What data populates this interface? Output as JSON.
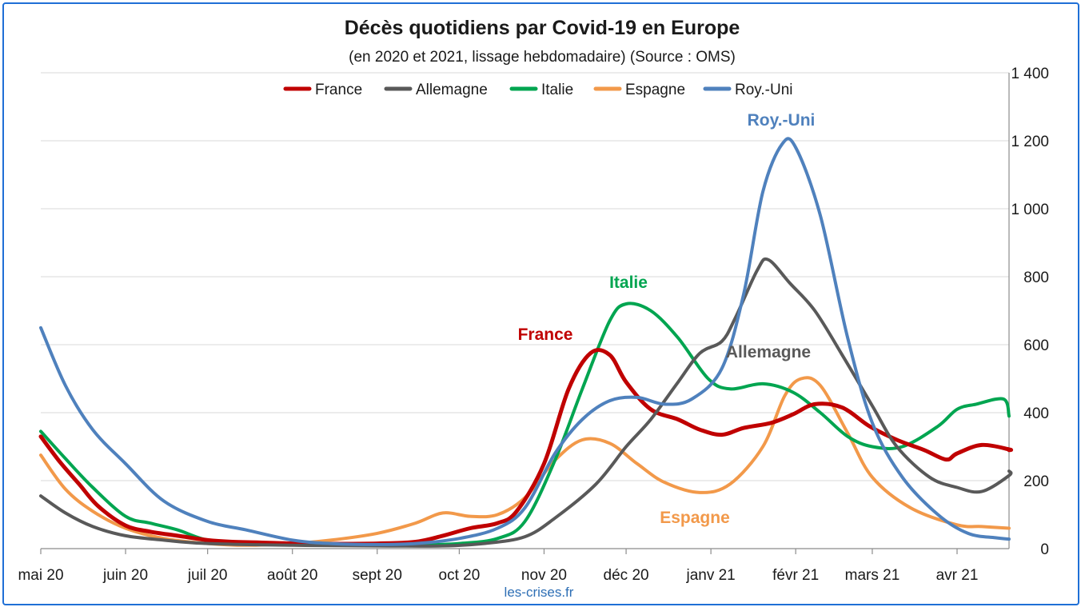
{
  "chart_data": {
    "type": "line",
    "title": "Décès quotidiens par Covid-19 en Europe",
    "subtitle": "(en 2020 et 2021, lissage hebdomadaire) (Source : OMS)",
    "source_label": "les-crises.fr",
    "x_axis": {
      "tick_labels": [
        "mai 20",
        "juin 20",
        "juil 20",
        "août 20",
        "sept 20",
        "oct 20",
        "nov 20",
        "déc 20",
        "janv 21",
        "févr 21",
        "mars 21",
        "avr 21"
      ],
      "range": [
        "2020-05-01",
        "2021-04-20"
      ]
    },
    "y_axis": {
      "position": "right",
      "range": [
        0,
        1400
      ],
      "ticks": [
        0,
        200,
        400,
        600,
        800,
        1000,
        1200,
        1400
      ],
      "tick_labels": [
        "0",
        "200",
        "400",
        "600",
        "800",
        "1 000",
        "1 200",
        "1 400"
      ],
      "grid": true
    },
    "legend": {
      "placement": "top"
    },
    "series": [
      {
        "name": "France",
        "color": "#c00000",
        "annotation": "France",
        "points": [
          [
            "2020-05-01",
            330
          ],
          [
            "2020-05-08",
            255
          ],
          [
            "2020-05-15",
            190
          ],
          [
            "2020-05-22",
            125
          ],
          [
            "2020-06-01",
            68
          ],
          [
            "2020-06-10",
            50
          ],
          [
            "2020-06-20",
            38
          ],
          [
            "2020-07-01",
            25
          ],
          [
            "2020-07-10",
            20
          ],
          [
            "2020-07-20",
            18
          ],
          [
            "2020-08-01",
            15
          ],
          [
            "2020-08-15",
            14
          ],
          [
            "2020-09-01",
            15
          ],
          [
            "2020-09-15",
            20
          ],
          [
            "2020-09-25",
            38
          ],
          [
            "2020-10-05",
            60
          ],
          [
            "2020-10-15",
            75
          ],
          [
            "2020-10-22",
            110
          ],
          [
            "2020-11-01",
            250
          ],
          [
            "2020-11-10",
            470
          ],
          [
            "2020-11-18",
            575
          ],
          [
            "2020-11-25",
            570
          ],
          [
            "2020-12-01",
            490
          ],
          [
            "2020-12-10",
            410
          ],
          [
            "2020-12-20",
            380
          ],
          [
            "2020-12-28",
            350
          ],
          [
            "2021-01-05",
            335
          ],
          [
            "2021-01-13",
            355
          ],
          [
            "2021-01-23",
            370
          ],
          [
            "2021-01-31",
            395
          ],
          [
            "2021-02-08",
            425
          ],
          [
            "2021-02-18",
            415
          ],
          [
            "2021-02-28",
            360
          ],
          [
            "2021-03-10",
            320
          ],
          [
            "2021-03-20",
            290
          ],
          [
            "2021-03-28",
            262
          ],
          [
            "2021-04-01",
            280
          ],
          [
            "2021-04-10",
            305
          ],
          [
            "2021-04-20",
            292
          ],
          [
            "2021-04-25",
            290
          ]
        ]
      },
      {
        "name": "Allemagne",
        "color": "#595959",
        "annotation": "Allemagne",
        "points": [
          [
            "2020-05-01",
            155
          ],
          [
            "2020-05-10",
            105
          ],
          [
            "2020-05-20",
            65
          ],
          [
            "2020-06-01",
            38
          ],
          [
            "2020-06-15",
            25
          ],
          [
            "2020-07-01",
            15
          ],
          [
            "2020-08-01",
            10
          ],
          [
            "2020-09-01",
            8
          ],
          [
            "2020-09-25",
            8
          ],
          [
            "2020-10-10",
            15
          ],
          [
            "2020-10-25",
            35
          ],
          [
            "2020-11-05",
            90
          ],
          [
            "2020-11-20",
            190
          ],
          [
            "2020-12-01",
            300
          ],
          [
            "2020-12-10",
            380
          ],
          [
            "2020-12-20",
            490
          ],
          [
            "2020-12-28",
            575
          ],
          [
            "2021-01-05",
            610
          ],
          [
            "2021-01-10",
            680
          ],
          [
            "2021-01-18",
            820
          ],
          [
            "2021-01-22",
            850
          ],
          [
            "2021-01-30",
            780
          ],
          [
            "2021-02-08",
            700
          ],
          [
            "2021-02-18",
            570
          ],
          [
            "2021-03-01",
            420
          ],
          [
            "2021-03-10",
            300
          ],
          [
            "2021-03-22",
            210
          ],
          [
            "2021-04-01",
            180
          ],
          [
            "2021-04-10",
            168
          ],
          [
            "2021-04-20",
            215
          ],
          [
            "2021-04-25",
            228
          ]
        ]
      },
      {
        "name": "Italie",
        "color": "#00a550",
        "annotation": "Italie",
        "points": [
          [
            "2020-05-01",
            345
          ],
          [
            "2020-05-10",
            265
          ],
          [
            "2020-05-20",
            180
          ],
          [
            "2020-06-01",
            95
          ],
          [
            "2020-06-10",
            75
          ],
          [
            "2020-06-20",
            55
          ],
          [
            "2020-07-01",
            25
          ],
          [
            "2020-07-15",
            17
          ],
          [
            "2020-08-01",
            12
          ],
          [
            "2020-08-15",
            10
          ],
          [
            "2020-09-01",
            10
          ],
          [
            "2020-09-15",
            10
          ],
          [
            "2020-10-01",
            15
          ],
          [
            "2020-10-15",
            30
          ],
          [
            "2020-10-25",
            80
          ],
          [
            "2020-11-05",
            260
          ],
          [
            "2020-11-15",
            470
          ],
          [
            "2020-11-25",
            670
          ],
          [
            "2020-12-01",
            720
          ],
          [
            "2020-12-10",
            700
          ],
          [
            "2020-12-20",
            620
          ],
          [
            "2020-12-31",
            500
          ],
          [
            "2021-01-08",
            470
          ],
          [
            "2021-01-20",
            485
          ],
          [
            "2021-01-31",
            460
          ],
          [
            "2021-02-10",
            400
          ],
          [
            "2021-02-20",
            330
          ],
          [
            "2021-03-01",
            300
          ],
          [
            "2021-03-12",
            300
          ],
          [
            "2021-03-25",
            360
          ],
          [
            "2021-04-01",
            410
          ],
          [
            "2021-04-08",
            425
          ],
          [
            "2021-04-18",
            440
          ],
          [
            "2021-04-25",
            390
          ]
        ]
      },
      {
        "name": "Espagne",
        "color": "#f2994a",
        "annotation": "Espagne",
        "points": [
          [
            "2020-05-01",
            275
          ],
          [
            "2020-05-10",
            175
          ],
          [
            "2020-05-20",
            110
          ],
          [
            "2020-06-01",
            60
          ],
          [
            "2020-06-15",
            30
          ],
          [
            "2020-07-01",
            15
          ],
          [
            "2020-07-15",
            10
          ],
          [
            "2020-08-01",
            15
          ],
          [
            "2020-08-15",
            25
          ],
          [
            "2020-09-01",
            45
          ],
          [
            "2020-09-15",
            75
          ],
          [
            "2020-09-25",
            105
          ],
          [
            "2020-10-05",
            95
          ],
          [
            "2020-10-15",
            100
          ],
          [
            "2020-10-25",
            150
          ],
          [
            "2020-11-05",
            260
          ],
          [
            "2020-11-15",
            320
          ],
          [
            "2020-11-25",
            310
          ],
          [
            "2020-12-05",
            250
          ],
          [
            "2020-12-15",
            195
          ],
          [
            "2020-12-28",
            165
          ],
          [
            "2021-01-08",
            190
          ],
          [
            "2021-01-20",
            300
          ],
          [
            "2021-01-28",
            450
          ],
          [
            "2021-02-03",
            500
          ],
          [
            "2021-02-10",
            480
          ],
          [
            "2021-02-20",
            340
          ],
          [
            "2021-03-01",
            210
          ],
          [
            "2021-03-15",
            120
          ],
          [
            "2021-04-01",
            70
          ],
          [
            "2021-04-10",
            65
          ],
          [
            "2021-04-25",
            60
          ]
        ]
      },
      {
        "name": "Roy.-Uni",
        "color": "#4f81bd",
        "annotation": "Roy.-Uni",
        "points": [
          [
            "2020-05-01",
            650
          ],
          [
            "2020-05-10",
            480
          ],
          [
            "2020-05-20",
            350
          ],
          [
            "2020-06-01",
            250
          ],
          [
            "2020-06-15",
            140
          ],
          [
            "2020-07-01",
            80
          ],
          [
            "2020-07-15",
            55
          ],
          [
            "2020-08-01",
            25
          ],
          [
            "2020-08-15",
            15
          ],
          [
            "2020-09-01",
            12
          ],
          [
            "2020-09-15",
            15
          ],
          [
            "2020-10-01",
            30
          ],
          [
            "2020-10-15",
            60
          ],
          [
            "2020-10-25",
            120
          ],
          [
            "2020-11-05",
            280
          ],
          [
            "2020-11-15",
            380
          ],
          [
            "2020-11-25",
            435
          ],
          [
            "2020-12-05",
            445
          ],
          [
            "2020-12-15",
            425
          ],
          [
            "2020-12-25",
            440
          ],
          [
            "2021-01-05",
            530
          ],
          [
            "2021-01-13",
            750
          ],
          [
            "2021-01-20",
            1050
          ],
          [
            "2021-01-27",
            1190
          ],
          [
            "2021-02-01",
            1180
          ],
          [
            "2021-02-10",
            980
          ],
          [
            "2021-02-20",
            620
          ],
          [
            "2021-03-01",
            370
          ],
          [
            "2021-03-12",
            210
          ],
          [
            "2021-03-25",
            100
          ],
          [
            "2021-04-05",
            45
          ],
          [
            "2021-04-15",
            32
          ],
          [
            "2021-04-25",
            28
          ]
        ]
      }
    ]
  }
}
